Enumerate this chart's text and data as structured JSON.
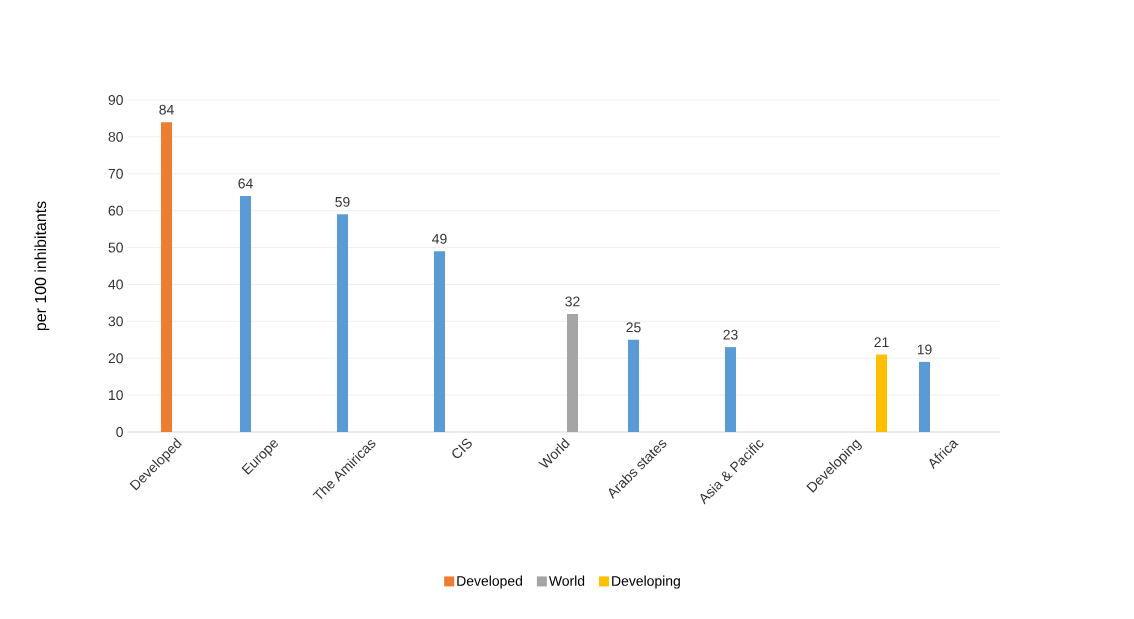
{
  "chart_data": {
    "type": "bar",
    "ylabel": "per 100 inhibitants",
    "categories": [
      "Developed",
      "Europe",
      "The Amiricas",
      "CIS",
      "World",
      "Arabs states",
      "Asia & Pacific",
      "Developing",
      "Africa"
    ],
    "series": [
      {
        "color": "#5b9bd5",
        "values": [
          null,
          64,
          59,
          49,
          null,
          25,
          23,
          null,
          19
        ]
      },
      {
        "name": "Developed",
        "color": "#ed7d31",
        "values": [
          84,
          null,
          null,
          null,
          null,
          null,
          null,
          null,
          null
        ]
      },
      {
        "name": "World",
        "color": "#a5a5a5",
        "values": [
          null,
          null,
          null,
          null,
          32,
          null,
          null,
          null,
          null
        ]
      },
      {
        "name": "Developing",
        "color": "#ffc000",
        "values": [
          null,
          null,
          null,
          null,
          null,
          null,
          null,
          21,
          null
        ]
      }
    ],
    "ylim": [
      0,
      90
    ],
    "yticks": [
      0,
      10,
      20,
      30,
      40,
      50,
      60,
      70,
      80,
      90
    ],
    "grid": "y",
    "legend": "bottom",
    "data_labels": true
  }
}
